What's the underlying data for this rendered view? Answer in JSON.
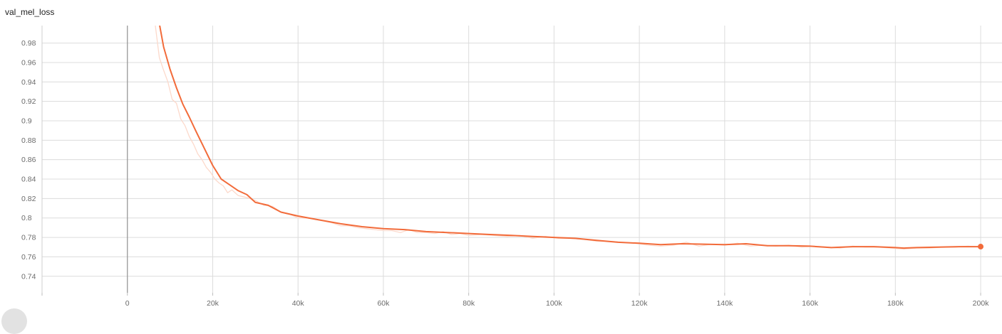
{
  "chart_data": {
    "type": "line",
    "title": "val_mel_loss",
    "xlabel": "",
    "ylabel": "",
    "xlim": [
      -20000,
      205000
    ],
    "ylim": [
      0.723,
      0.998
    ],
    "x_ticks": [
      0,
      20000,
      40000,
      60000,
      80000,
      100000,
      120000,
      140000,
      160000,
      180000,
      200000
    ],
    "x_tick_labels": [
      "0",
      "20k",
      "40k",
      "60k",
      "80k",
      "100k",
      "120k",
      "140k",
      "160k",
      "180k",
      "200k"
    ],
    "y_ticks": [
      0.74,
      0.76,
      0.78,
      0.8,
      0.82,
      0.84,
      0.86,
      0.88,
      0.9,
      0.92,
      0.94,
      0.96,
      0.98
    ],
    "y_tick_labels": [
      "0.74",
      "0.76",
      "0.78",
      "0.8",
      "0.82",
      "0.84",
      "0.86",
      "0.88",
      "0.9",
      "0.92",
      "0.94",
      "0.96",
      "0.98"
    ],
    "grid": true,
    "colors": {
      "smoothed": "#f26b3a",
      "raw": "#fcd9cb",
      "grid": "#dcdcdc",
      "zero_line": "#999999",
      "tick_text": "#6b6b6b"
    },
    "series": [
      {
        "role": "smoothed",
        "x": [
          7500,
          8500,
          10000,
          11500,
          13000,
          14500,
          16000,
          18000,
          20000,
          22000,
          24000,
          26000,
          28000,
          30000,
          33000,
          36000,
          40000,
          45000,
          50000,
          55000,
          60000,
          65000,
          70000,
          75000,
          80000,
          85000,
          90000,
          95000,
          100000,
          105000,
          110000,
          115000,
          120000,
          125000,
          130000,
          135000,
          140000,
          145000,
          150000,
          155000,
          160000,
          165000,
          170000,
          175000,
          180000,
          182000,
          185000,
          190000,
          195000,
          200000
        ],
        "y": [
          1.0,
          0.976,
          0.953,
          0.934,
          0.917,
          0.904,
          0.89,
          0.872,
          0.854,
          0.84,
          0.834,
          0.828,
          0.824,
          0.816,
          0.813,
          0.806,
          0.802,
          0.798,
          0.794,
          0.791,
          0.789,
          0.788,
          0.786,
          0.785,
          0.784,
          0.783,
          0.782,
          0.781,
          0.78,
          0.779,
          0.777,
          0.775,
          0.774,
          0.7725,
          0.7735,
          0.773,
          0.7725,
          0.7735,
          0.7715,
          0.7715,
          0.771,
          0.7695,
          0.7705,
          0.7705,
          0.7695,
          0.769,
          0.7695,
          0.77,
          0.7705,
          0.7705
        ]
      },
      {
        "role": "raw",
        "x": [
          6500,
          7500,
          8500,
          9500,
          10500,
          11500,
          12500,
          13500,
          14500,
          15500,
          16500,
          17500,
          18500,
          19500,
          20500,
          21500,
          22500,
          23500,
          24500,
          26000,
          28000,
          30000,
          32000,
          34000,
          36000,
          38000,
          40000,
          42000,
          44000,
          46000,
          48000,
          50000,
          52000,
          54000,
          56000,
          58000,
          60000,
          62000,
          64000,
          66000,
          68000,
          70000,
          72000,
          74000,
          76000,
          78000,
          80000,
          83000,
          86000,
          89000,
          92000,
          95000,
          98000,
          101000,
          104000,
          107000,
          110000,
          113000,
          116000,
          119000,
          122000,
          125000,
          128000,
          131000,
          134000,
          137000,
          140000,
          143000,
          146000,
          149000,
          152000,
          155000,
          158000,
          161000,
          164000,
          167000,
          170000,
          173000,
          176000,
          179000,
          182000,
          185000,
          188000,
          191000,
          194000,
          197000,
          200000
        ],
        "y": [
          1.0,
          0.965,
          0.952,
          0.94,
          0.922,
          0.918,
          0.902,
          0.895,
          0.884,
          0.876,
          0.866,
          0.86,
          0.852,
          0.847,
          0.84,
          0.836,
          0.833,
          0.826,
          0.829,
          0.823,
          0.821,
          0.818,
          0.813,
          0.812,
          0.806,
          0.804,
          0.8,
          0.8,
          0.799,
          0.797,
          0.795,
          0.792,
          0.792,
          0.79,
          0.789,
          0.788,
          0.787,
          0.787,
          0.785,
          0.788,
          0.785,
          0.785,
          0.784,
          0.786,
          0.783,
          0.784,
          0.782,
          0.783,
          0.782,
          0.781,
          0.782,
          0.779,
          0.781,
          0.779,
          0.779,
          0.778,
          0.776,
          0.776,
          0.775,
          0.774,
          0.772,
          0.771,
          0.772,
          0.775,
          0.771,
          0.773,
          0.772,
          0.774,
          0.771,
          0.772,
          0.771,
          0.772,
          0.77,
          0.771,
          0.77,
          0.769,
          0.771,
          0.77,
          0.77,
          0.769,
          0.768,
          0.769,
          0.769,
          0.77,
          0.77,
          0.771,
          0.77
        ]
      }
    ]
  }
}
